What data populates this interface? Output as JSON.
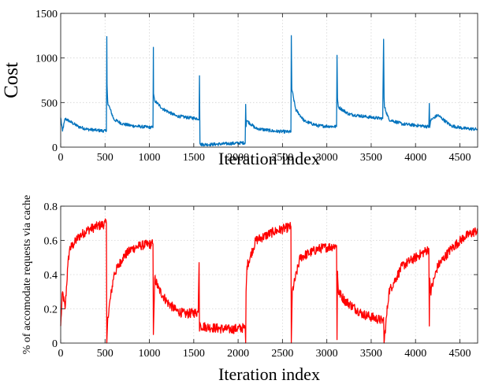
{
  "chart_data": [
    {
      "type": "line",
      "title": "",
      "xlabel": "Iteration index",
      "ylabel": "Cost",
      "xlim": [
        0,
        4700
      ],
      "ylim": [
        0,
        1500
      ],
      "xticks": [
        0,
        500,
        1000,
        1500,
        2000,
        2500,
        3000,
        3500,
        4000,
        4500
      ],
      "yticks": [
        0,
        500,
        1000,
        1500
      ],
      "grid": true,
      "color": "#0072BD",
      "series": [
        {
          "x": [
            0,
            20,
            50,
            100,
            200,
            300,
            400,
            515,
            520,
            522,
            530,
            600,
            700,
            800,
            900,
            1040,
            1045,
            1047,
            1060,
            1150,
            1300,
            1450,
            1560,
            1565,
            1570,
            1575,
            1700,
            1900,
            2080,
            2085,
            2090,
            2095,
            2200,
            2400,
            2595,
            2600,
            2605,
            2650,
            2750,
            2900,
            3110,
            3115,
            3120,
            3130,
            3250,
            3450,
            3630,
            3640,
            3645,
            3650,
            3700,
            3850,
            4150,
            4155,
            4160,
            4170,
            4250,
            4400,
            4550,
            4700
          ],
          "y": [
            330,
            180,
            320,
            290,
            230,
            200,
            190,
            180,
            1240,
            700,
            500,
            310,
            260,
            240,
            230,
            220,
            1120,
            600,
            520,
            430,
            350,
            330,
            320,
            800,
            40,
            30,
            30,
            40,
            50,
            480,
            230,
            300,
            210,
            180,
            170,
            1250,
            650,
            420,
            290,
            240,
            230,
            1030,
            550,
            450,
            370,
            340,
            320,
            1210,
            550,
            450,
            310,
            260,
            230,
            490,
            220,
            300,
            360,
            240,
            210,
            200
          ]
        }
      ]
    },
    {
      "type": "line",
      "title": "",
      "xlabel": "Iteration index",
      "ylabel": "% of accomodate requests via cache",
      "xlim": [
        0,
        4700
      ],
      "ylim": [
        0,
        0.8
      ],
      "xticks": [
        0,
        500,
        1000,
        1500,
        2000,
        2500,
        3000,
        3500,
        4000,
        4500
      ],
      "yticks": [
        0,
        0.2,
        0.4,
        0.6,
        0.8
      ],
      "grid": true,
      "color": "#FF0000",
      "series": [
        {
          "x": [
            0,
            20,
            50,
            80,
            100,
            150,
            200,
            300,
            400,
            515,
            520,
            530,
            600,
            700,
            800,
            900,
            1040,
            1045,
            1060,
            1100,
            1200,
            1300,
            1400,
            1550,
            1560,
            1565,
            1570,
            1580,
            1700,
            1900,
            2080,
            2085,
            2090,
            2100,
            2200,
            2400,
            2595,
            2600,
            2610,
            2700,
            2900,
            3110,
            3115,
            3120,
            3130,
            3200,
            3400,
            3630,
            3640,
            3645,
            3700,
            3850,
            4000,
            4150,
            4155,
            4160,
            4170,
            4250,
            4400,
            4550,
            4700
          ],
          "y": [
            0.1,
            0.3,
            0.2,
            0.45,
            0.55,
            0.58,
            0.62,
            0.66,
            0.68,
            0.7,
            0.0,
            0.15,
            0.4,
            0.5,
            0.55,
            0.57,
            0.58,
            0.05,
            0.38,
            0.32,
            0.24,
            0.19,
            0.17,
            0.18,
            0.47,
            0.07,
            0.12,
            0.1,
            0.09,
            0.08,
            0.09,
            0.0,
            0.3,
            0.45,
            0.6,
            0.65,
            0.68,
            0.0,
            0.3,
            0.5,
            0.55,
            0.57,
            0.02,
            0.42,
            0.3,
            0.25,
            0.17,
            0.13,
            0.15,
            0.0,
            0.3,
            0.45,
            0.5,
            0.55,
            0.1,
            0.38,
            0.3,
            0.45,
            0.55,
            0.62,
            0.66
          ]
        }
      ]
    }
  ]
}
